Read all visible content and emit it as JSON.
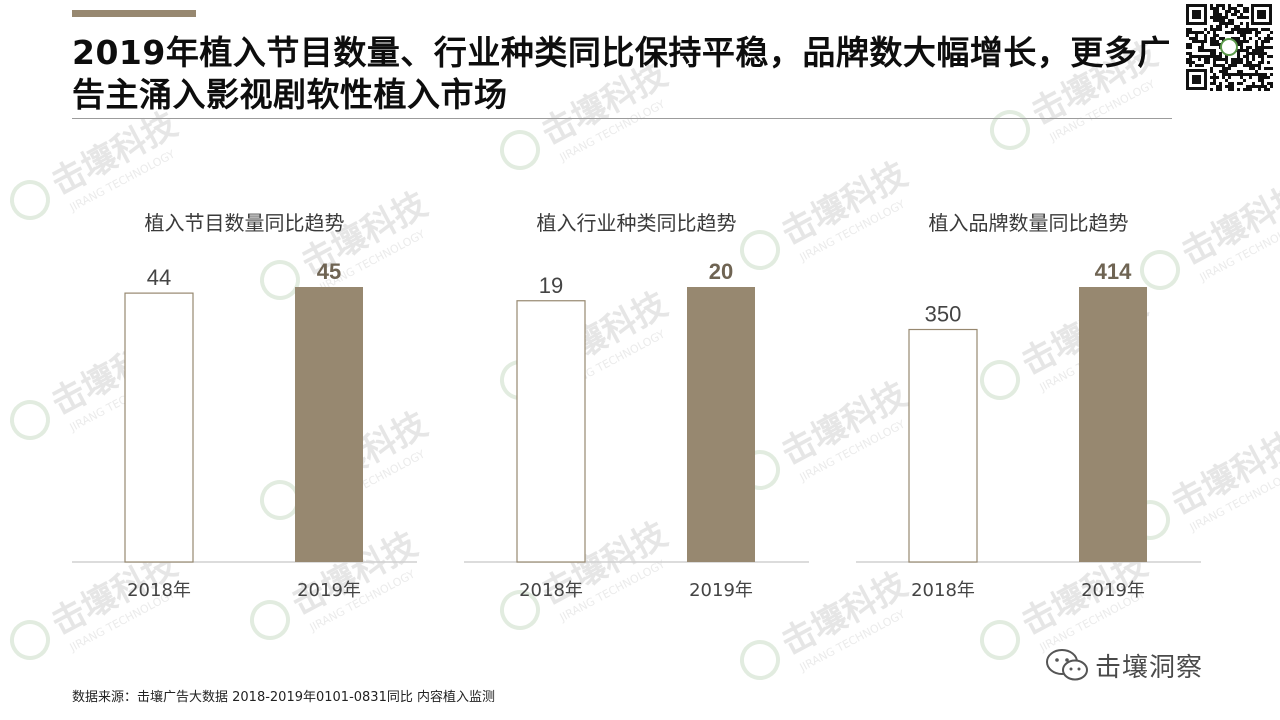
{
  "header": {
    "title": "2019年植入节目数量、行业种类同比保持平稳，品牌数大幅增长，更多广告主涌入影视剧软性植入市场"
  },
  "colors": {
    "accent": "#978870",
    "bar_2018_stroke": "#978870",
    "bar_2018_fill": "#ffffff",
    "bar_2019_fill": "#978870"
  },
  "chart_data": [
    {
      "type": "bar",
      "title": "植入节目数量同比趋势",
      "categories": [
        "2018年",
        "2019年"
      ],
      "values": [
        44,
        45
      ],
      "value_labels": [
        "44",
        "45"
      ]
    },
    {
      "type": "bar",
      "title": "植入行业种类同比趋势",
      "categories": [
        "2018年",
        "2019年"
      ],
      "values": [
        19,
        20
      ],
      "value_labels": [
        "19",
        "20"
      ]
    },
    {
      "type": "bar",
      "title": "植入品牌数量同比趋势",
      "categories": [
        "2018年",
        "2019年"
      ],
      "values": [
        350,
        414
      ],
      "value_labels": [
        "350",
        "414"
      ]
    }
  ],
  "footer": {
    "source": "数据来源：击壤广告大数据  2018-2019年0101-0831同比 内容植入监测",
    "brand": "击壤洞察",
    "brand_icon": "wechat-icon"
  },
  "watermark": {
    "logo_text": "击壤科技",
    "sub_text": "JIRANG TECHNOLOGY"
  },
  "qr_icon": "qr-code-icon"
}
